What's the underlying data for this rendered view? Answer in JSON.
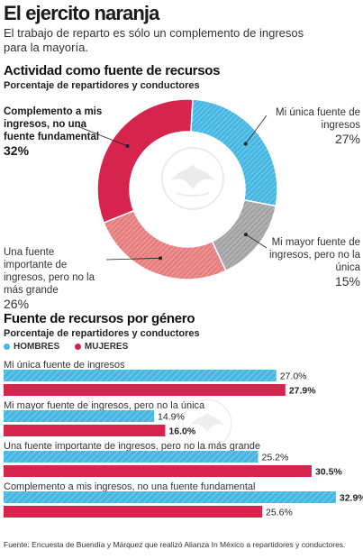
{
  "header": {
    "title": "El ejercito naranja",
    "subtitle": "El trabajo de reparto es sólo un complemento de ingresos para la mayoría."
  },
  "colors": {
    "blue": "#45b7e2",
    "red": "#d7244e",
    "salmon": "#e77d7e",
    "gray": "#a3a3a3"
  },
  "chart_data": [
    {
      "type": "pie",
      "title": "Actividad como fuente de recursos",
      "subtitle": "Porcentaje de repartidores y conductores",
      "slices": [
        {
          "label": "Mi única fuente de ingresos",
          "value": 27,
          "pct_label": "27%",
          "color": "#45b7e2",
          "pattern": "hatch"
        },
        {
          "label": "Mi mayor fuente de ingresos, pero no la única",
          "value": 15,
          "pct_label": "15%",
          "color": "#a3a3a3",
          "pattern": "hatch"
        },
        {
          "label": "Una fuente importante de ingresos, pero no la más grande",
          "value": 26,
          "pct_label": "26%",
          "color": "#e77d7e",
          "pattern": "hatch"
        },
        {
          "label": "Complemento a mis ingresos, no una fuente fundamental",
          "value": 32,
          "pct_label": "32%",
          "color": "#d7244e",
          "pattern": "solid"
        }
      ]
    },
    {
      "type": "bar",
      "orientation": "horizontal",
      "title": "Fuente de recursos por género",
      "subtitle": "Porcentaje de repartidores y conductores",
      "legend": [
        "HOMBRES",
        "MUJERES"
      ],
      "xlim": [
        0,
        33
      ],
      "categories": [
        "Mi única fuente de ingresos",
        "Mi mayor fuente de ingresos, pero no la única",
        "Una fuente importante de ingresos, pero no la más grande",
        "Complemento a mis ingresos, no una fuente fundamental"
      ],
      "series": [
        {
          "name": "HOMBRES",
          "color": "#45b7e2",
          "values": [
            27.0,
            14.9,
            25.2,
            32.9
          ],
          "labels": [
            "27.0%",
            "14.9%",
            "25.2%",
            "32.9%"
          ]
        },
        {
          "name": "MUJERES",
          "color": "#d7244e",
          "values": [
            27.9,
            16.0,
            30.5,
            25.6
          ],
          "labels": [
            "27.9%",
            "16.0%",
            "30.5%",
            "25.6%"
          ]
        }
      ],
      "highlight_larger": true
    }
  ],
  "source": "Fuente: Encuesta de Buendía y Márquez que realizó Alianza In México a repartidores y conductores."
}
